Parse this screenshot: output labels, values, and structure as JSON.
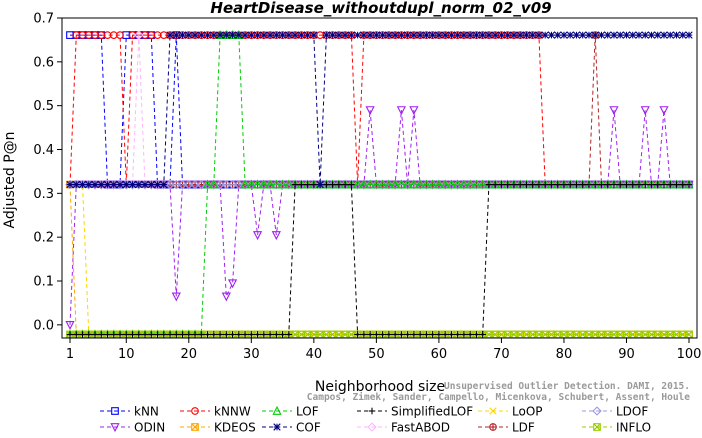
{
  "chart_data": {
    "type": "line",
    "title": "HeartDisease_withoutdupl_norm_02_v09",
    "xlabel": "Neighborhood size",
    "ylabel": "Adjusted P@n",
    "xlim": [
      1,
      100
    ],
    "ylim": [
      -0.03,
      0.7
    ],
    "x_ticks": [
      1,
      10,
      20,
      30,
      40,
      50,
      60,
      70,
      80,
      90,
      100
    ],
    "y_ticks": [
      0.0,
      0.1,
      0.2,
      0.3,
      0.4,
      0.5,
      0.6,
      0.7
    ],
    "y_tick_labels": [
      "0.0",
      "0.1",
      "0.2",
      "0.3",
      "0.4",
      "0.5",
      "0.6",
      "0.7"
    ],
    "grid": false,
    "legend_position": "bottom",
    "series": [
      {
        "name": "kNN",
        "color": "#0000ff",
        "marker": "square",
        "segments": [
          [
            1,
            0.661
          ],
          [
            6,
            0.661
          ],
          [
            7,
            0.32
          ],
          [
            9,
            0.32
          ],
          [
            10,
            0.661
          ],
          [
            14,
            0.661
          ],
          [
            15,
            0.32
          ],
          [
            17,
            0.32
          ],
          [
            18,
            0.661
          ],
          [
            19,
            0.32
          ],
          [
            100,
            0.32
          ]
        ]
      },
      {
        "name": "kNNW",
        "color": "#ff0000",
        "marker": "circle",
        "segments": [
          [
            1,
            0.32
          ],
          [
            2,
            0.661
          ],
          [
            9,
            0.661
          ],
          [
            10,
            0.32
          ],
          [
            11,
            0.661
          ],
          [
            46,
            0.661
          ],
          [
            47,
            0.32
          ],
          [
            48,
            0.661
          ],
          [
            76,
            0.661
          ],
          [
            77,
            0.32
          ],
          [
            100,
            0.32
          ]
        ]
      },
      {
        "name": "LOF",
        "color": "#00cc00",
        "marker": "triangle-up",
        "segments": [
          [
            1,
            -0.022
          ],
          [
            22,
            -0.022
          ],
          [
            23,
            0.32
          ],
          [
            24,
            0.32
          ],
          [
            25,
            0.661
          ],
          [
            28,
            0.661
          ],
          [
            29,
            0.32
          ],
          [
            100,
            0.32
          ]
        ]
      },
      {
        "name": "SimplifiedLOF",
        "color": "#000000",
        "marker": "plus",
        "segments": [
          [
            1,
            -0.022
          ],
          [
            36,
            -0.022
          ],
          [
            37,
            0.32
          ],
          [
            46,
            0.32
          ],
          [
            47,
            -0.022
          ],
          [
            67,
            -0.022
          ],
          [
            68,
            0.32
          ],
          [
            100,
            0.32
          ]
        ]
      },
      {
        "name": "LoOP",
        "color": "#ffd700",
        "marker": "x",
        "segments": [
          [
            1,
            0.32
          ],
          [
            3,
            0.32
          ],
          [
            4,
            -0.022
          ],
          [
            100,
            -0.022
          ]
        ]
      },
      {
        "name": "LDOF",
        "color": "#9999dd",
        "marker": "diamond",
        "segments": [
          [
            1,
            0.32
          ],
          [
            100,
            0.32
          ]
        ]
      },
      {
        "name": "ODIN",
        "color": "#a020f0",
        "marker": "triangle-down",
        "segments": [
          [
            1,
            0.0
          ],
          [
            2,
            0.32
          ],
          [
            17,
            0.32
          ],
          [
            18,
            0.065
          ],
          [
            19,
            0.32
          ],
          [
            25,
            0.32
          ],
          [
            26,
            0.065
          ],
          [
            27,
            0.095
          ],
          [
            28,
            0.32
          ],
          [
            30,
            0.32
          ],
          [
            31,
            0.205
          ],
          [
            32,
            0.32
          ],
          [
            33,
            0.32
          ],
          [
            34,
            0.205
          ],
          [
            35,
            0.32
          ],
          [
            48,
            0.32
          ],
          [
            49,
            0.49
          ],
          [
            50,
            0.32
          ],
          [
            53,
            0.32
          ],
          [
            54,
            0.49
          ],
          [
            55,
            0.32
          ],
          [
            56,
            0.49
          ],
          [
            57,
            0.32
          ],
          [
            87,
            0.32
          ],
          [
            88,
            0.49
          ],
          [
            89,
            0.32
          ],
          [
            92,
            0.32
          ],
          [
            93,
            0.49
          ],
          [
            94,
            0.32
          ],
          [
            95,
            0.32
          ],
          [
            96,
            0.49
          ],
          [
            97,
            0.32
          ],
          [
            100,
            0.32
          ]
        ]
      },
      {
        "name": "KDEOS",
        "color": "#ffa500",
        "marker": "square-x",
        "segments": [
          [
            1,
            0.32
          ],
          [
            2,
            -0.022
          ],
          [
            100,
            -0.022
          ]
        ]
      },
      {
        "name": "COF",
        "color": "#000080",
        "marker": "asterisk",
        "segments": [
          [
            1,
            0.32
          ],
          [
            14,
            0.32
          ],
          [
            15,
            0.32
          ],
          [
            16,
            0.32
          ],
          [
            17,
            0.661
          ],
          [
            40,
            0.661
          ],
          [
            41,
            0.32
          ],
          [
            42,
            0.661
          ],
          [
            100,
            0.661
          ]
        ]
      },
      {
        "name": "FastABOD",
        "color": "#ffb6ff",
        "marker": "diamond",
        "segments": [
          [
            1,
            0.32
          ],
          [
            11,
            0.32
          ],
          [
            12,
            0.661
          ],
          [
            13,
            0.32
          ],
          [
            100,
            0.32
          ]
        ]
      },
      {
        "name": "LDF",
        "color": "#b22222",
        "marker": "circle-plus",
        "segments": [
          [
            1,
            0.32
          ],
          [
            84,
            0.32
          ],
          [
            85,
            0.661
          ],
          [
            86,
            0.32
          ],
          [
            100,
            0.32
          ]
        ]
      },
      {
        "name": "INFLO",
        "color": "#99cc00",
        "marker": "square-x",
        "segments": [
          [
            1,
            -0.022
          ],
          [
            100,
            -0.022
          ]
        ]
      }
    ],
    "watermark_lines": [
      "Unsupervised Outlier Detection. DAMI, 2015.",
      "Campos, Zimek, Sander, Campello, Micenkova, Schubert, Assent, Houle"
    ]
  }
}
